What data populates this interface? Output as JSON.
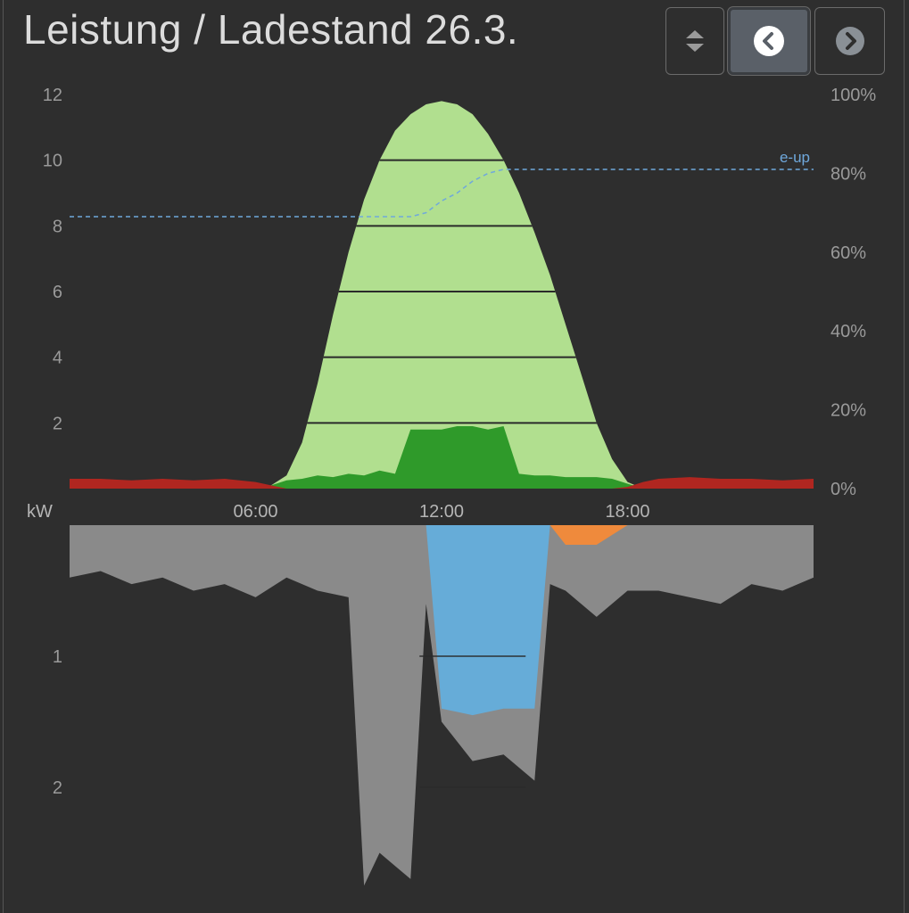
{
  "header": {
    "title": "Leistung / Ladestand 26.3."
  },
  "toolbar": {
    "buttons": [
      {
        "name": "sort-toggle",
        "icon": "up-down-arrows-icon",
        "active": false
      },
      {
        "name": "previous-day",
        "icon": "chevron-left-circle-icon",
        "active": true
      },
      {
        "name": "next-day",
        "icon": "chevron-right-circle-icon",
        "active": false
      }
    ]
  },
  "colors": {
    "background": "#2e2e2e",
    "pv_production": "#b1df8f",
    "self_consumption": "#2f9a2a",
    "grid_import_top": "#b02620",
    "consumption": "#8a8a8a",
    "battery_charge": "#66acd8",
    "battery_discharge": "#ef8a3c",
    "soc_line": "#6fa8dc"
  },
  "chart_data": [
    {
      "type": "area",
      "panel": "power",
      "ylabel": "kW",
      "ylim": [
        0,
        12
      ],
      "y_ticks": [
        "2",
        "4",
        "6",
        "8",
        "10",
        "12"
      ],
      "y2lim": [
        0,
        100
      ],
      "y2_ticks": [
        "0%",
        "20%",
        "40%",
        "60%",
        "80%",
        "100%"
      ],
      "x_ticks": [
        "06:00",
        "12:00",
        "18:00"
      ],
      "grid": "horizontal lines inside PV area",
      "x": [
        "00:00",
        "01:00",
        "02:00",
        "03:00",
        "04:00",
        "05:00",
        "06:00",
        "06:30",
        "07:00",
        "07:30",
        "08:00",
        "08:30",
        "09:00",
        "09:30",
        "10:00",
        "10:30",
        "11:00",
        "11:30",
        "12:00",
        "12:30",
        "13:00",
        "13:30",
        "14:00",
        "14:30",
        "15:00",
        "15:30",
        "16:00",
        "16:30",
        "17:00",
        "17:30",
        "18:00",
        "18:30",
        "19:00",
        "20:00",
        "21:00",
        "22:00",
        "23:00",
        "24:00"
      ],
      "series": [
        {
          "key": "pv",
          "values": [
            0,
            0,
            0,
            0,
            0,
            0,
            0,
            0.1,
            0.4,
            1.4,
            3.2,
            5.3,
            7.2,
            8.8,
            10.0,
            10.9,
            11.4,
            11.7,
            11.8,
            11.7,
            11.4,
            10.8,
            10.0,
            9.0,
            7.8,
            6.5,
            5.0,
            3.5,
            2.0,
            0.9,
            0.2,
            0,
            0,
            0,
            0,
            0,
            0,
            0
          ]
        },
        {
          "key": "self_consumption",
          "values": [
            0,
            0,
            0,
            0,
            0,
            0,
            0,
            0.1,
            0.25,
            0.3,
            0.4,
            0.35,
            0.45,
            0.4,
            0.55,
            0.45,
            1.8,
            1.8,
            1.8,
            1.9,
            1.9,
            1.8,
            1.9,
            0.45,
            0.4,
            0.4,
            0.35,
            0.35,
            0.35,
            0.3,
            0.15,
            0,
            0,
            0,
            0,
            0,
            0,
            0
          ]
        },
        {
          "key": "grid_import",
          "values": [
            0.3,
            0.3,
            0.25,
            0.3,
            0.25,
            0.3,
            0.2,
            0.1,
            0,
            0,
            0,
            0,
            0,
            0,
            0,
            0,
            0,
            0,
            0,
            0,
            0,
            0,
            0,
            0,
            0,
            0,
            0,
            0,
            0,
            0,
            0.05,
            0.2,
            0.3,
            0.35,
            0.3,
            0.3,
            0.25,
            0.3
          ]
        },
        {
          "key": "soc",
          "label": "e-up",
          "values_percent": [
            69,
            69,
            69,
            69,
            69,
            69,
            69,
            69,
            69,
            69,
            69,
            69,
            69,
            69,
            69,
            69,
            69,
            70,
            73,
            75,
            78,
            80,
            81,
            81,
            81,
            81,
            81,
            81,
            81,
            81,
            81,
            81,
            81,
            81,
            81,
            81,
            81,
            81
          ]
        }
      ]
    },
    {
      "type": "area",
      "panel": "consumption",
      "ylim": [
        0,
        3
      ],
      "y_ticks": [
        "1",
        "2"
      ],
      "inverted": true,
      "x": [
        "00:00",
        "01:00",
        "02:00",
        "03:00",
        "04:00",
        "05:00",
        "06:00",
        "07:00",
        "08:00",
        "09:00",
        "09:30",
        "10:00",
        "10:30",
        "11:00",
        "11:30",
        "12:00",
        "13:00",
        "14:00",
        "15:00",
        "15:30",
        "16:00",
        "17:00",
        "18:00",
        "19:00",
        "20:00",
        "21:00",
        "22:00",
        "23:00",
        "24:00"
      ],
      "series": [
        {
          "key": "consumption",
          "values": [
            0.4,
            0.35,
            0.45,
            0.4,
            0.5,
            0.45,
            0.55,
            0.4,
            0.5,
            0.55,
            2.75,
            2.5,
            2.6,
            2.7,
            0.6,
            1.5,
            1.8,
            1.75,
            1.95,
            0.45,
            0.5,
            0.7,
            0.5,
            0.5,
            0.55,
            0.6,
            0.45,
            0.5,
            0.4
          ]
        },
        {
          "key": "battery_charge",
          "values": [
            0,
            0,
            0,
            0,
            0,
            0,
            0,
            0,
            0,
            0,
            0,
            0,
            0,
            0,
            0,
            1.4,
            1.45,
            1.4,
            1.4,
            0,
            0,
            0,
            0,
            0,
            0,
            0,
            0,
            0,
            0
          ]
        },
        {
          "key": "battery_discharge",
          "values": [
            0,
            0,
            0,
            0,
            0,
            0,
            0,
            0,
            0,
            0,
            0,
            0,
            0,
            0,
            0,
            0,
            0,
            0,
            0,
            0,
            0.15,
            0.15,
            0,
            0,
            0,
            0,
            0,
            0,
            0
          ]
        }
      ]
    }
  ],
  "labels": {
    "soc_line": "e-up",
    "unit": "kW"
  }
}
